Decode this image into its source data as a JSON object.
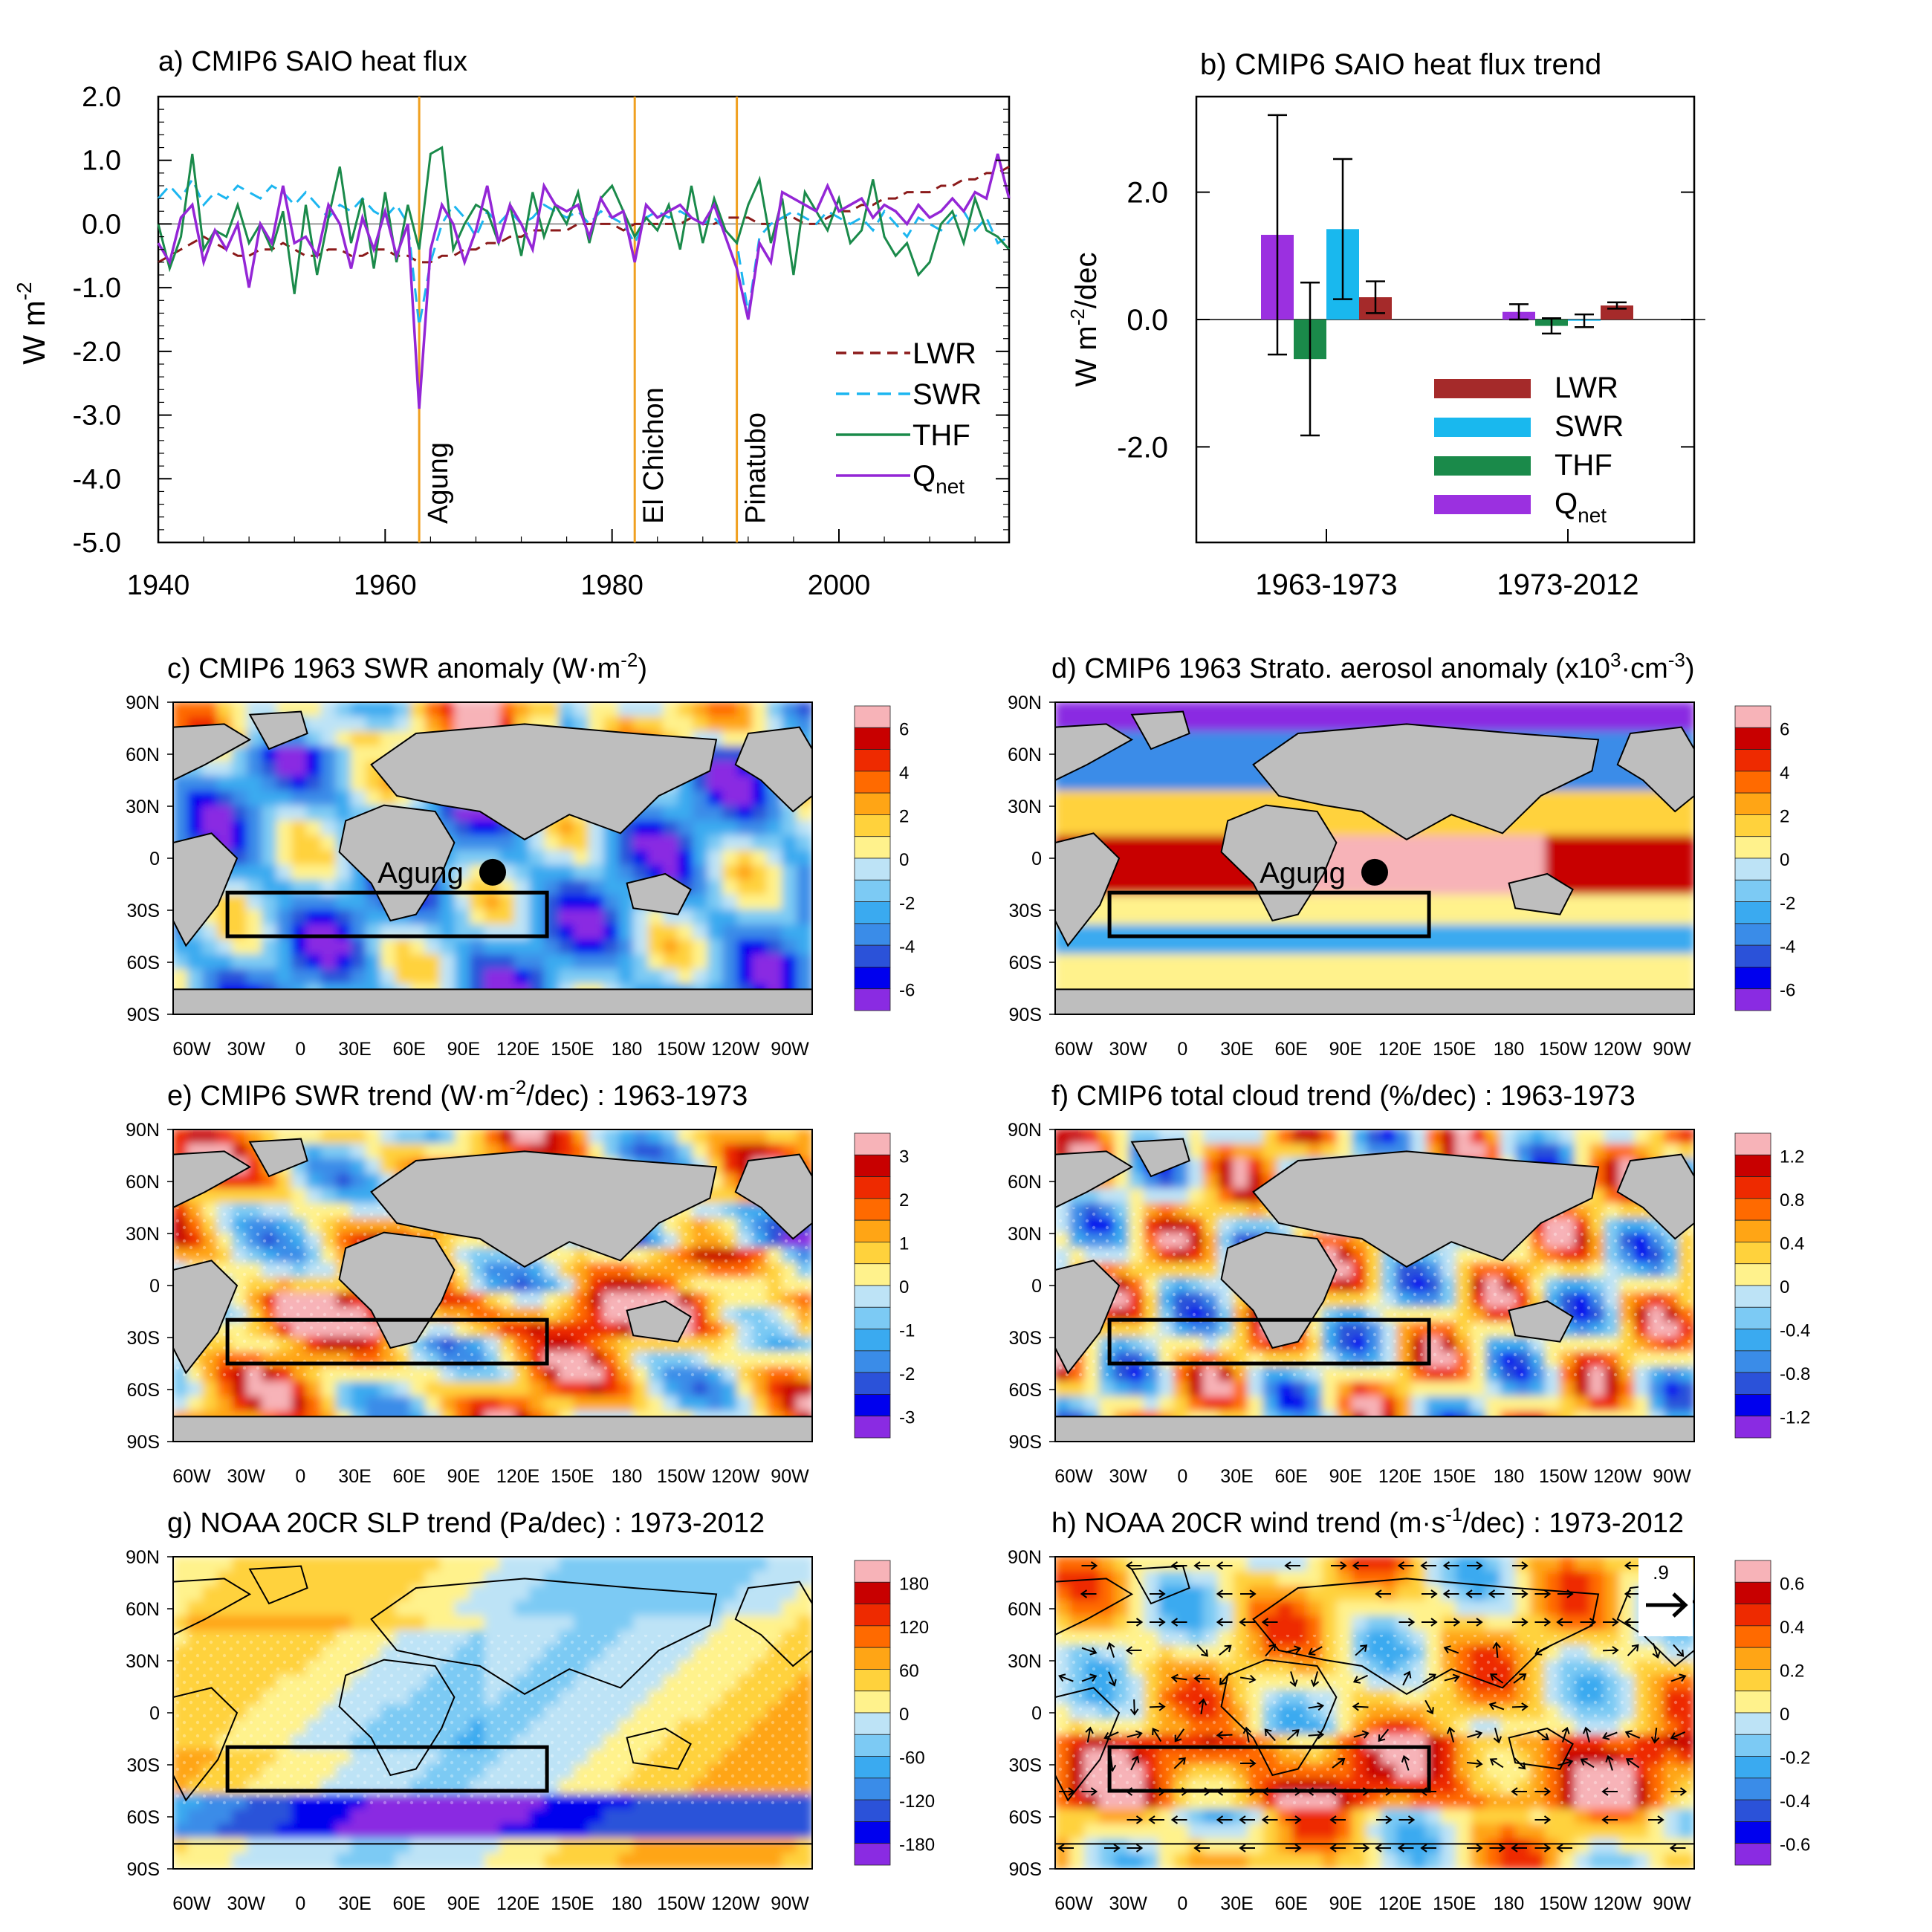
{
  "chart_data": [
    {
      "panel": "a",
      "type": "line",
      "title": "a) CMIP6 SAIO heat flux",
      "ylabel": "W m",
      "ylabel_sup": "-2",
      "xlim": [
        1940,
        2015
      ],
      "ylim": [
        -5.0,
        2.0
      ],
      "yticks": [
        "2.0",
        "1.0",
        "0.0",
        "-1.0",
        "-2.0",
        "-3.0",
        "-4.0",
        "-5.0"
      ],
      "xticks": [
        "1940",
        "1960",
        "1980",
        "2000"
      ],
      "events": [
        {
          "label": "Agung",
          "year": 1963
        },
        {
          "label": "El Chichon",
          "year": 1982
        },
        {
          "label": "Pinatubo",
          "year": 1991
        }
      ],
      "event_color": "#f0a020",
      "x": [
        1940,
        1941,
        1942,
        1943,
        1944,
        1945,
        1946,
        1947,
        1948,
        1949,
        1950,
        1951,
        1952,
        1953,
        1954,
        1955,
        1956,
        1957,
        1958,
        1959,
        1960,
        1961,
        1962,
        1963,
        1964,
        1965,
        1966,
        1967,
        1968,
        1969,
        1970,
        1971,
        1972,
        1973,
        1974,
        1975,
        1976,
        1977,
        1978,
        1979,
        1980,
        1981,
        1982,
        1983,
        1984,
        1985,
        1986,
        1987,
        1988,
        1989,
        1990,
        1991,
        1992,
        1993,
        1994,
        1995,
        1996,
        1997,
        1998,
        1999,
        2000,
        2001,
        2002,
        2003,
        2004,
        2005,
        2006,
        2007,
        2008,
        2009,
        2010,
        2011,
        2012,
        2013,
        2014,
        2015
      ],
      "series": [
        {
          "name": "LWR",
          "color": "#8b1a1a",
          "dash": "long",
          "values": [
            -0.6,
            -0.5,
            -0.4,
            -0.3,
            -0.2,
            -0.3,
            -0.4,
            -0.5,
            -0.5,
            -0.4,
            -0.4,
            -0.3,
            -0.4,
            -0.5,
            -0.5,
            -0.4,
            -0.4,
            -0.5,
            -0.5,
            -0.4,
            -0.4,
            -0.5,
            -0.5,
            -0.6,
            -0.6,
            -0.5,
            -0.5,
            -0.4,
            -0.4,
            -0.3,
            -0.3,
            -0.2,
            -0.2,
            -0.1,
            -0.1,
            -0.1,
            -0.1,
            0.0,
            0.0,
            0.0,
            0.0,
            -0.1,
            0.0,
            0.0,
            0.0,
            0.0,
            0.0,
            0.1,
            0.0,
            0.0,
            0.1,
            0.1,
            0.1,
            0.0,
            0.0,
            0.1,
            0.1,
            0.0,
            0.0,
            0.1,
            0.2,
            0.2,
            0.3,
            0.3,
            0.4,
            0.4,
            0.5,
            0.5,
            0.5,
            0.6,
            0.6,
            0.7,
            0.7,
            0.8,
            0.8,
            0.9
          ]
        },
        {
          "name": "SWR",
          "color": "#1cb6f0",
          "dash": "medium",
          "values": [
            0.4,
            0.6,
            0.4,
            0.7,
            0.3,
            0.5,
            0.4,
            0.6,
            0.5,
            0.4,
            0.6,
            0.5,
            0.3,
            0.5,
            0.3,
            0.1,
            0.3,
            0.2,
            0.4,
            0.2,
            0.1,
            0.3,
            0.0,
            -1.6,
            -0.6,
            0.0,
            0.3,
            0.1,
            -0.2,
            0.2,
            0.0,
            0.2,
            0.0,
            0.1,
            0.3,
            0.2,
            0.1,
            0.2,
            0.0,
            0.2,
            0.1,
            0.0,
            -0.3,
            0.1,
            0.2,
            0.1,
            0.2,
            0.1,
            0.0,
            0.1,
            -0.1,
            -0.3,
            -1.4,
            -0.2,
            0.0,
            0.1,
            0.2,
            0.1,
            0.0,
            0.2,
            0.1,
            0.0,
            0.1,
            -0.1,
            0.2,
            0.0,
            -0.2,
            0.1,
            0.0,
            -0.1,
            0.1,
            0.2,
            -0.1,
            0.1,
            -0.3,
            -0.2
          ]
        },
        {
          "name": "THF",
          "color": "#1a8a4a",
          "dash": "solid",
          "values": [
            0.0,
            -0.7,
            -0.2,
            1.1,
            -0.4,
            -0.1,
            -0.2,
            0.3,
            -0.3,
            0.0,
            -0.4,
            0.2,
            -1.1,
            0.3,
            -0.8,
            0.1,
            0.9,
            -0.3,
            0.4,
            -0.7,
            0.5,
            -0.6,
            0.3,
            -0.4,
            1.1,
            1.2,
            -0.4,
            0.0,
            0.3,
            0.2,
            -0.3,
            0.3,
            -0.5,
            0.5,
            -0.2,
            0.3,
            0.0,
            0.5,
            -0.3,
            0.4,
            0.6,
            0.2,
            -0.2,
            0.1,
            -0.1,
            0.3,
            -0.4,
            0.6,
            -0.3,
            0.4,
            -0.1,
            -0.3,
            0.3,
            0.7,
            -0.3,
            0.4,
            -0.8,
            0.5,
            0.2,
            -0.1,
            0.4,
            -0.3,
            -0.1,
            0.7,
            -0.2,
            -0.5,
            -0.3,
            -0.8,
            -0.6,
            0.0,
            0.2,
            -0.3,
            0.4,
            -0.1,
            -0.2,
            -0.4
          ]
        },
        {
          "name": "Q",
          "name_sub": "net",
          "color": "#9426d6",
          "dash": "solid",
          "values": [
            -0.3,
            -0.6,
            0.1,
            0.3,
            -0.6,
            -0.1,
            -0.4,
            0.0,
            -1.0,
            0.0,
            -0.3,
            0.6,
            -0.3,
            -0.2,
            -0.5,
            0.3,
            0.0,
            -0.7,
            0.1,
            -0.4,
            0.2,
            -0.5,
            0.0,
            -2.9,
            -0.4,
            0.3,
            0.0,
            -0.6,
            -0.1,
            0.6,
            -0.3,
            0.3,
            0.0,
            -0.4,
            0.6,
            0.3,
            0.2,
            0.3,
            -0.2,
            0.4,
            0.1,
            0.2,
            -0.6,
            0.3,
            0.1,
            0.2,
            0.3,
            0.1,
            0.0,
            0.3,
            -0.2,
            -0.7,
            -1.5,
            -0.3,
            -0.6,
            0.5,
            0.4,
            0.3,
            0.2,
            0.6,
            0.2,
            0.3,
            0.4,
            0.1,
            0.3,
            0.2,
            0.0,
            0.3,
            0.1,
            0.2,
            0.4,
            0.2,
            0.5,
            0.4,
            1.1,
            0.4
          ]
        }
      ]
    },
    {
      "panel": "b",
      "type": "bar",
      "title": "b) CMIP6 SAIO heat flux trend",
      "ylabel": "W m",
      "ylabel_sup": "-2",
      "ylabel_tail": "/dec",
      "ylim": [
        -3.5,
        3.5
      ],
      "yticks": [
        "2.0",
        "0.0",
        "-2.0"
      ],
      "categories": [
        "1963-1973",
        "1973-2012"
      ],
      "series": [
        {
          "name": "LWR",
          "color": "#a52a2a",
          "values": [
            0.35,
            0.22
          ],
          "err": [
            0.25,
            0.05
          ]
        },
        {
          "name": "SWR",
          "color": "#19b8ee",
          "values": [
            1.42,
            -0.02
          ],
          "err": [
            1.1,
            0.1
          ]
        },
        {
          "name": "THF",
          "color": "#1a8a4a",
          "values": [
            -0.62,
            -0.1
          ],
          "err": [
            1.2,
            0.12
          ]
        },
        {
          "name": "Q",
          "name_sub": "net",
          "color": "#9b30e0",
          "values": [
            1.33,
            0.12
          ],
          "err": [
            1.88,
            0.12
          ]
        }
      ],
      "bar_order": [
        "Q",
        "THF",
        "SWR",
        "LWR"
      ]
    }
  ],
  "maps": [
    {
      "id": "c",
      "title": "c) CMIP6 1963 SWR anomaly (W",
      "title_mid": "m",
      "title_sup": "-2",
      "title_tail": ")",
      "cbar_labels": [
        "6",
        "4",
        "2",
        "0",
        "-2",
        "-4",
        "-6"
      ],
      "volcano": "Agung",
      "pattern": "neg"
    },
    {
      "id": "d",
      "title": "d) CMIP6 1963 Strato. aerosol anomaly (x10",
      "title_sup": "3",
      "title_mid": "cm",
      "title_sup2": "-3",
      "title_tail": ")",
      "cbar_labels": [
        "6",
        "4",
        "2",
        "0",
        "-2",
        "-4",
        "-6"
      ],
      "volcano": "Agung",
      "pattern": "aerosol"
    },
    {
      "id": "e",
      "title": "e) CMIP6 SWR trend (W",
      "title_mid": "m",
      "title_sup": "-2",
      "title_tail": "/dec) : 1963-1973",
      "cbar_labels": [
        "3",
        "2",
        "1",
        "0",
        "-1",
        "-2",
        "-3"
      ],
      "pattern": "pos"
    },
    {
      "id": "f",
      "title": "f) CMIP6 total cloud trend (%/dec) : 1963-1973",
      "cbar_labels": [
        "1.2",
        "0.8",
        "0.4",
        "0",
        "-0.4",
        "-0.8",
        "-1.2"
      ],
      "pattern": "mixed"
    },
    {
      "id": "g",
      "title": "g) NOAA 20CR SLP trend (Pa/dec) : 1973-2012",
      "cbar_labels": [
        "180",
        "120",
        "60",
        "0",
        "-60",
        "-120",
        "-180"
      ],
      "pattern": "slp"
    },
    {
      "id": "h",
      "title": "h) NOAA 20CR wind trend (m",
      "title_mid": "s",
      "title_sup": "-1",
      "title_tail": "/dec) : 1973-2012",
      "cbar_labels": [
        "0.6",
        "0.4",
        "0.2",
        "0",
        "-0.2",
        "-0.4",
        "-0.6"
      ],
      "ref_vector": ".9",
      "pattern": "wind"
    }
  ],
  "map_axes": {
    "lat_labels": [
      "90N",
      "60N",
      "30N",
      "0",
      "30S",
      "60S",
      "90S"
    ],
    "lon_labels": [
      "60W",
      "30W",
      "0",
      "30E",
      "60E",
      "90E",
      "120E",
      "150E",
      "180",
      "150W",
      "120W",
      "90W"
    ]
  },
  "colormap": [
    "#8a2be2",
    "#0000ee",
    "#2b52d9",
    "#3a8ce8",
    "#3aaaf0",
    "#7ccaf4",
    "#bde3f6",
    "#fff28c",
    "#ffd23c",
    "#ffa515",
    "#ff6a00",
    "#ee2a00",
    "#c80000",
    "#f7b3b8"
  ],
  "land_color": "#bebebe"
}
